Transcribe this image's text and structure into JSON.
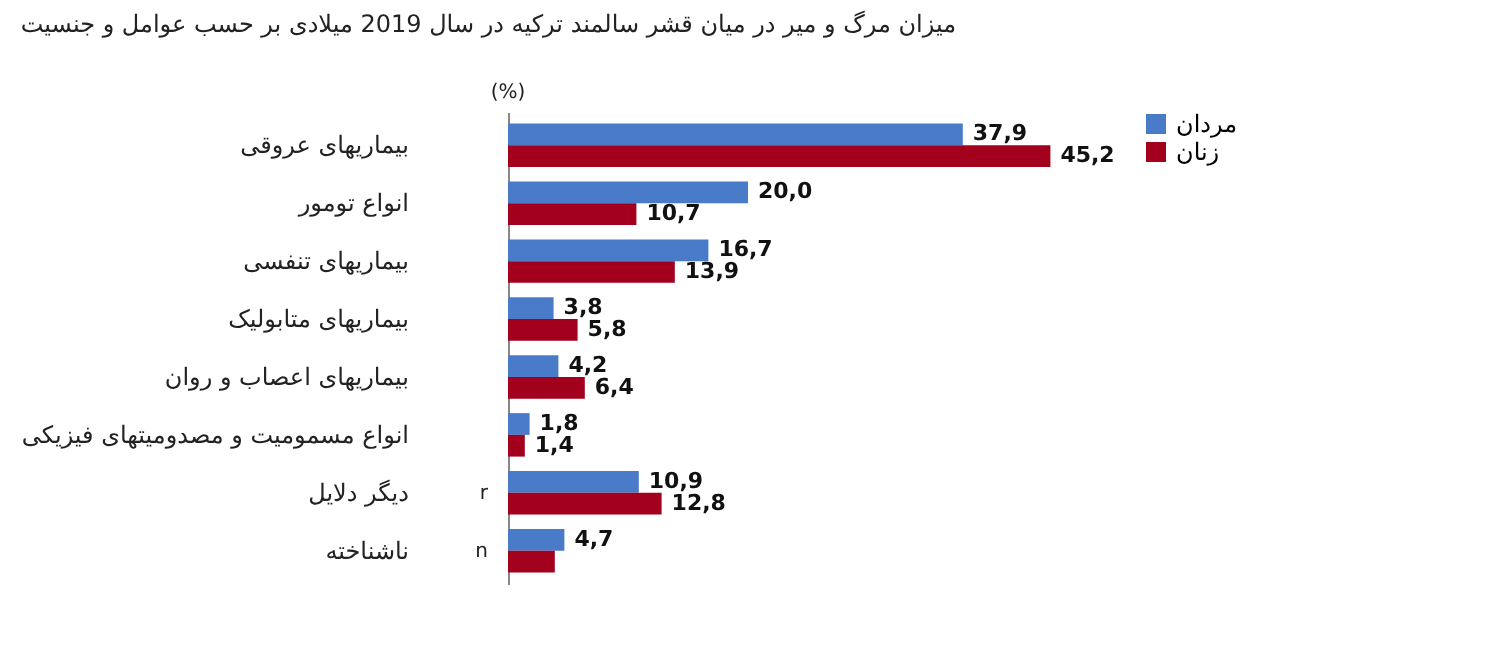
{
  "chart_data": {
    "type": "bar",
    "orientation": "horizontal",
    "title": "میزان مرگ و میر در میان قشر سالمند ترکیه در سال 2019 میلادی بر حسب عوامل و جنسیت",
    "categories": [
      "بیماریهای عروقی",
      "انواع تومور",
      "بیماریهای تنفسی",
      "بیماریهای متابولیک",
      "بیماریهای اعصاب و روان",
      "انواع مسمومیت و مصدومیتهای فیزیکی",
      "دیگر دلایل",
      "ناشناخته"
    ],
    "series": [
      {
        "name": "مردان",
        "color": "#4a7bc8",
        "values": [
          37.9,
          20.0,
          16.7,
          3.8,
          4.2,
          1.8,
          10.9,
          4.7
        ],
        "value_labels": [
          "37,9",
          "20,0",
          "16,7",
          "3,8",
          "4,2",
          "1,8",
          "10,9",
          "4,7"
        ]
      },
      {
        "name": "زنان",
        "color": "#a3001e",
        "values": [
          45.2,
          10.7,
          13.9,
          5.8,
          6.4,
          1.4,
          12.8,
          3.9
        ],
        "value_labels": [
          "45,2",
          "10,7",
          "13,9",
          "5,8",
          "6,4",
          "1,4",
          "12,8",
          null
        ]
      }
    ],
    "annotations": [
      "(%)",
      "r",
      "n"
    ],
    "legend": "right",
    "grid": false
  }
}
